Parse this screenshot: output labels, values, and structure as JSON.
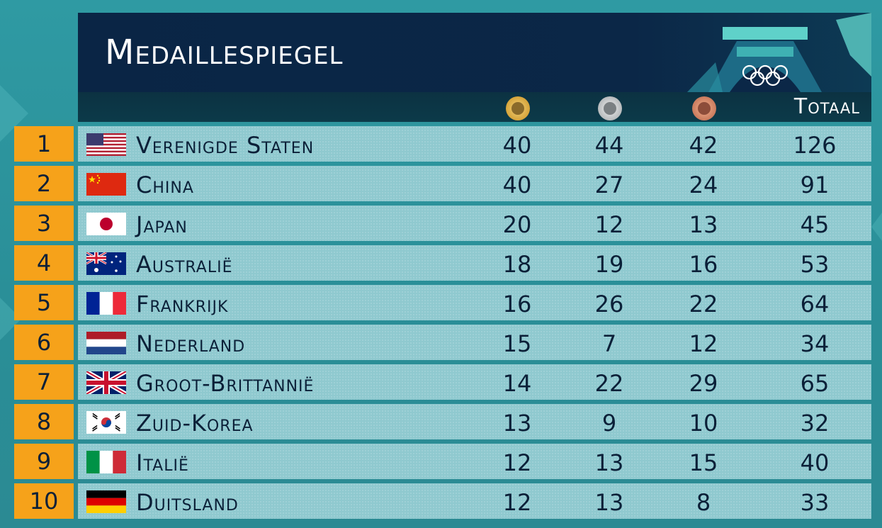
{
  "title": "Medaillespiegel",
  "columns": {
    "gold": "gold-medal-icon",
    "silver": "silver-medal-icon",
    "bronze": "bronze-medal-icon",
    "total": "Totaal"
  },
  "colors": {
    "rank_bg": "#f6a21a",
    "row_bg": "#8fc9cf",
    "header_bg": "#0a2545",
    "text_dark": "#0b2038"
  },
  "rows": [
    {
      "rank": "1",
      "country": "Verenigde Staten",
      "flag": "us-flag",
      "gold": "40",
      "silver": "44",
      "bronze": "42",
      "total": "126"
    },
    {
      "rank": "2",
      "country": "China",
      "flag": "china-flag",
      "gold": "40",
      "silver": "27",
      "bronze": "24",
      "total": "91"
    },
    {
      "rank": "3",
      "country": "Japan",
      "flag": "japan-flag",
      "gold": "20",
      "silver": "12",
      "bronze": "13",
      "total": "45"
    },
    {
      "rank": "4",
      "country": "Australië",
      "flag": "australia-flag",
      "gold": "18",
      "silver": "19",
      "bronze": "16",
      "total": "53"
    },
    {
      "rank": "5",
      "country": "Frankrijk",
      "flag": "france-flag",
      "gold": "16",
      "silver": "26",
      "bronze": "22",
      "total": "64"
    },
    {
      "rank": "6",
      "country": "Nederland",
      "flag": "netherlands-flag",
      "gold": "15",
      "silver": "7",
      "bronze": "12",
      "total": "34"
    },
    {
      "rank": "7",
      "country": "Groot-Brittannië",
      "flag": "uk-flag",
      "gold": "14",
      "silver": "22",
      "bronze": "29",
      "total": "65"
    },
    {
      "rank": "8",
      "country": "Zuid-Korea",
      "flag": "south-korea-flag",
      "gold": "13",
      "silver": "9",
      "bronze": "10",
      "total": "32"
    },
    {
      "rank": "9",
      "country": "Italië",
      "flag": "italy-flag",
      "gold": "12",
      "silver": "13",
      "bronze": "15",
      "total": "40"
    },
    {
      "rank": "10",
      "country": "Duitsland",
      "flag": "germany-flag",
      "gold": "12",
      "silver": "13",
      "bronze": "8",
      "total": "33"
    }
  ]
}
